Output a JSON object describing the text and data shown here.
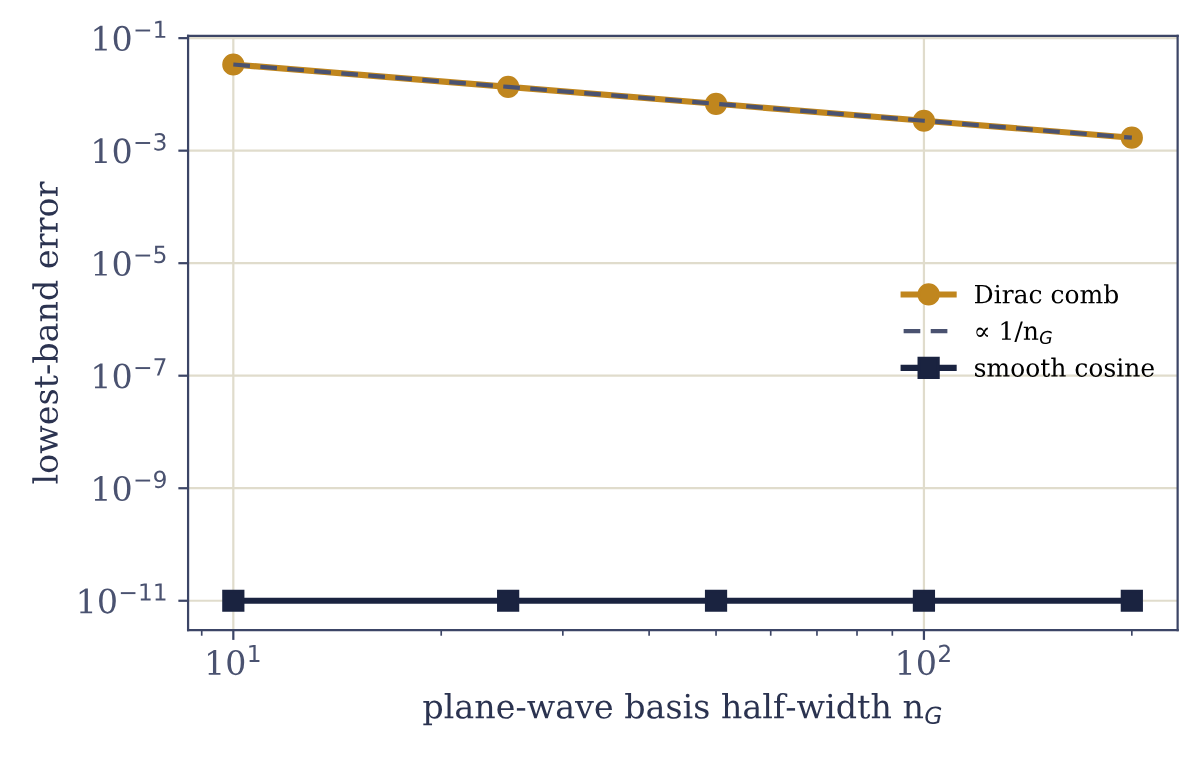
{
  "chart_data": {
    "type": "line",
    "xlabel": "plane-wave basis half-width n$_{G}$",
    "ylabel": "lowest-band error",
    "x": [
      10,
      25,
      50,
      100,
      200
    ],
    "series": [
      {
        "name": "Dirac comb",
        "color": "#c0861e",
        "values": [
          0.034,
          0.0136,
          0.0068,
          0.0034,
          0.0017
        ],
        "marker": "circle",
        "line_style": "solid"
      },
      {
        "name": "∝ 1/n$_{G}$",
        "color": "#4a5270",
        "values": [
          0.034,
          0.0136,
          0.0068,
          0.0034,
          0.0017
        ],
        "marker": "none",
        "line_style": "dashed"
      },
      {
        "name": "smooth cosine",
        "color": "#1a2340",
        "values": [
          1e-11,
          1e-11,
          1e-11,
          1e-11,
          1e-11
        ],
        "marker": "square",
        "line_style": "solid"
      }
    ],
    "log": "xy",
    "xlim": [
      8.6,
      233
    ],
    "ylim": [
      3e-12,
      0.11
    ],
    "xticks": [
      {
        "value": 10,
        "label": "10$^{1}$"
      },
      {
        "value": 100,
        "label": "10$^{2}$"
      }
    ],
    "yticks": [
      {
        "value": 0.1,
        "label": "10$^{−1}$"
      },
      {
        "value": 0.001,
        "label": "10$^{−3}$"
      },
      {
        "value": 1e-05,
        "label": "10$^{−5}$"
      },
      {
        "value": 1e-07,
        "label": "10$^{−7}$"
      },
      {
        "value": 1e-09,
        "label": "10$^{−9}$"
      },
      {
        "value": 1e-11,
        "label": "10$^{−11}$"
      }
    ],
    "grid": true,
    "legend": "right"
  }
}
